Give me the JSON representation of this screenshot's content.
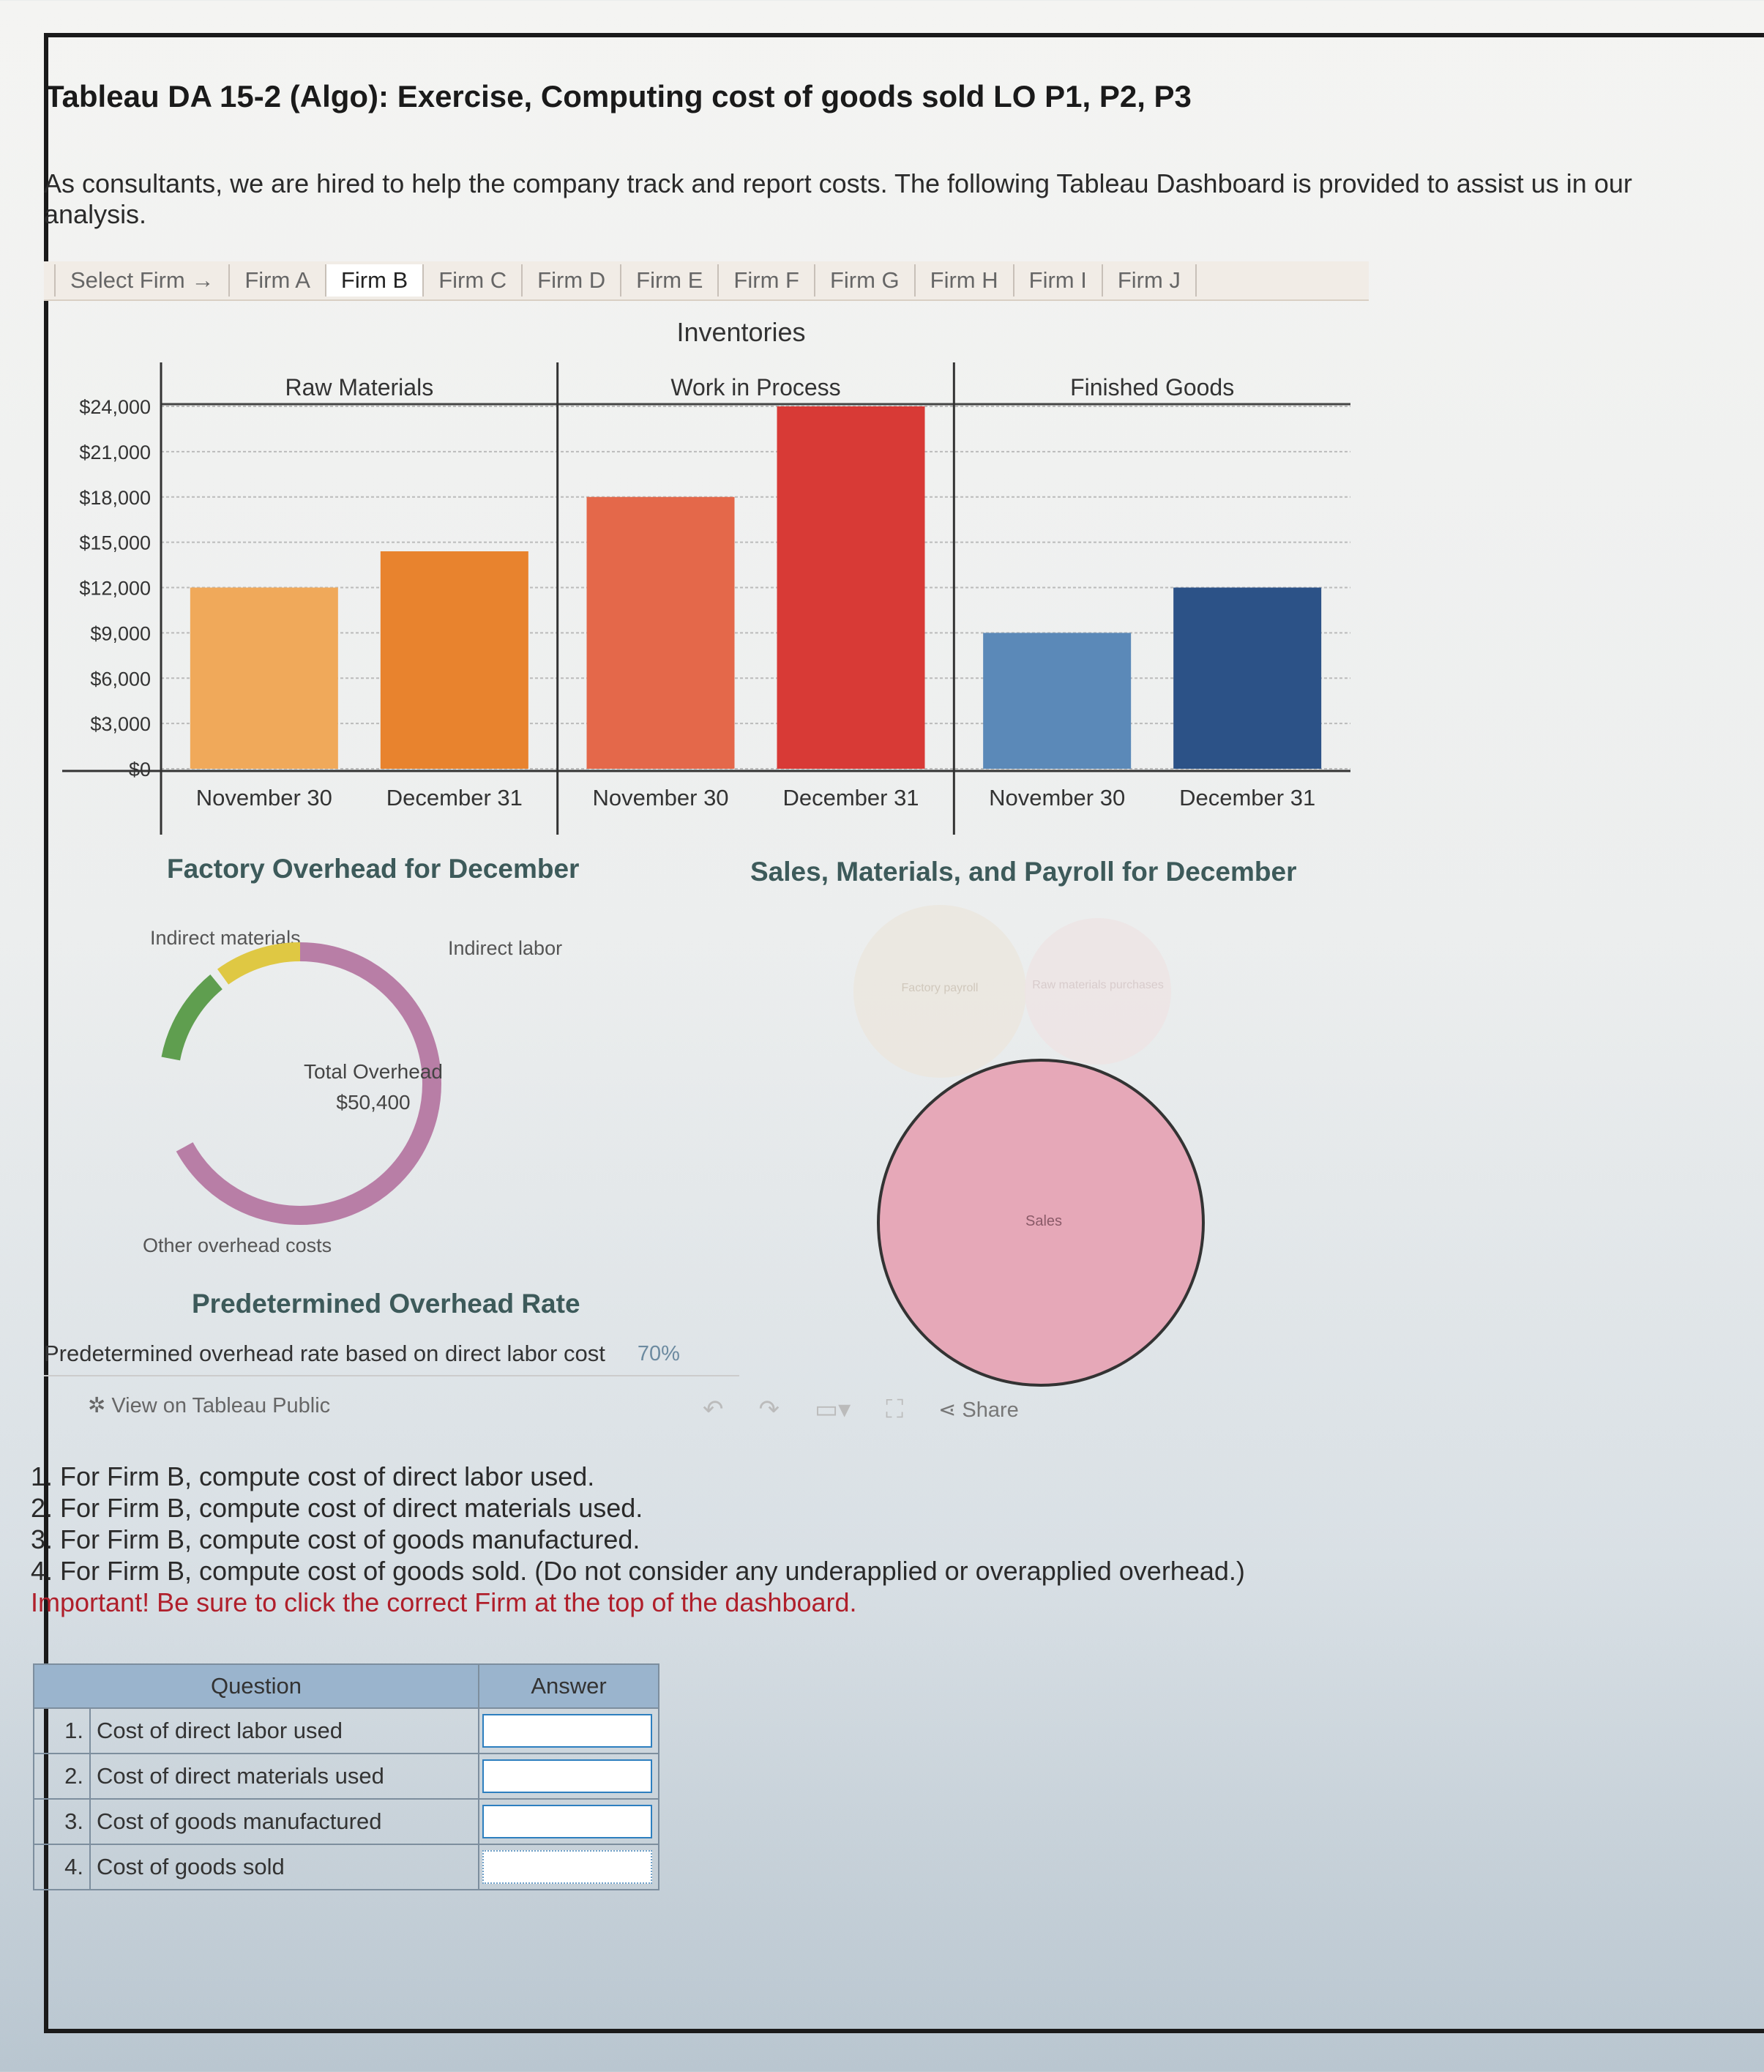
{
  "title": "Tableau DA 15-2 (Algo): Exercise, Computing cost of goods sold LO P1, P2, P3",
  "intro": "As consultants, we are hired to help the company track and report costs. The following Tableau Dashboard is provided to assist us in our analysis.",
  "tabs": [
    "Select Firm →",
    "Firm A",
    "Firm B",
    "Firm C",
    "Firm D",
    "Firm E",
    "Firm F",
    "Firm G",
    "Firm H",
    "Firm I",
    "Firm J"
  ],
  "active_tab": "Firm B",
  "chart_data": {
    "type": "bar",
    "title": "Inventories",
    "panels": [
      "Raw Materials",
      "Work in Process",
      "Finished Goods"
    ],
    "categories": [
      "November 30",
      "December 31",
      "November 30",
      "December 31",
      "November 30",
      "December 31"
    ],
    "values": [
      12000,
      14400,
      18000,
      24000,
      9000,
      12000
    ],
    "colors": [
      "#f0a95a",
      "#e8832e",
      "#e4684a",
      "#d83a36",
      "#5b89b8",
      "#2c5287"
    ],
    "yticks": [
      "$24,000",
      "$21,000",
      "$18,000",
      "$15,000",
      "$12,000",
      "$9,000",
      "$6,000",
      "$3,000",
      "$0"
    ],
    "ylim": [
      0,
      24000
    ]
  },
  "overhead": {
    "title": "Factory Overhead for December",
    "center_title": "Total Overhead",
    "center_value": "$50,400",
    "labels": {
      "indirect_materials": "Indirect materials",
      "indirect_labor": "Indirect labor",
      "other": "Other overhead costs"
    },
    "shares": {
      "indirect_materials": 0.11,
      "indirect_labor": 0.12,
      "other": 0.77
    },
    "colors": {
      "indirect_materials": "#5f9e4f",
      "indirect_labor": "#dfc843",
      "other": "#b87ea6"
    }
  },
  "bubbles": {
    "title": "Sales, Materials, and Payroll for December",
    "factory_payroll": "Factory payroll",
    "raw_materials": "Raw materials purchases",
    "sales": "Sales"
  },
  "rate": {
    "title": "Predetermined Overhead Rate",
    "label": "Predetermined overhead rate based on direct labor cost",
    "value": "70%"
  },
  "toolbar": {
    "view_link": "View on Tableau Public",
    "share": "Share"
  },
  "questions": [
    "1. For Firm B, compute cost of direct labor used.",
    "2. For Firm B, compute cost of direct materials used.",
    "3. For Firm B, compute cost of goods manufactured.",
    "4. For Firm B, compute cost of goods sold. (Do not consider any underapplied or overapplied overhead.)"
  ],
  "important": "Important! Be sure to click the correct Firm at the top of the dashboard.",
  "table": {
    "headers": [
      "Question",
      "Answer"
    ],
    "rows": [
      {
        "num": "1.",
        "label": "Cost of direct labor used",
        "answer": ""
      },
      {
        "num": "2.",
        "label": "Cost of direct materials used",
        "answer": ""
      },
      {
        "num": "3.",
        "label": "Cost of goods manufactured",
        "answer": ""
      },
      {
        "num": "4.",
        "label": "Cost of goods sold",
        "answer": ""
      }
    ]
  }
}
